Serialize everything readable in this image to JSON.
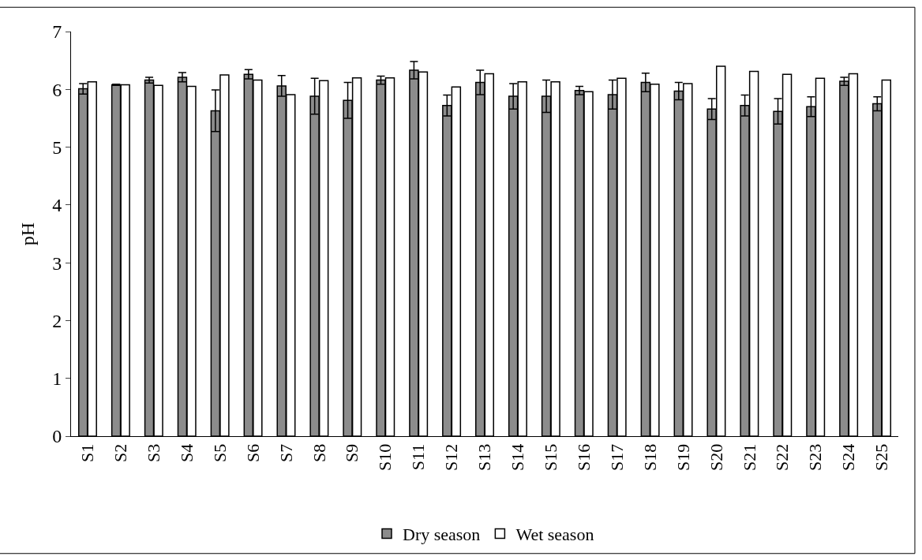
{
  "chart_data": {
    "type": "bar",
    "ylabel": "pH",
    "categories": [
      "S1",
      "S2",
      "S3",
      "S4",
      "S5",
      "S6",
      "S7",
      "S8",
      "S9",
      "S10",
      "S11",
      "S12",
      "S13",
      "S14",
      "S15",
      "S16",
      "S17",
      "S18",
      "S19",
      "S20",
      "S21",
      "S22",
      "S23",
      "S24",
      "S25"
    ],
    "series": [
      {
        "name": "Dry season",
        "color": "#8c8c8c",
        "values": [
          6.01,
          6.08,
          6.16,
          6.21,
          5.63,
          6.26,
          6.06,
          5.88,
          5.81,
          6.16,
          6.33,
          5.72,
          6.12,
          5.88,
          5.88,
          5.98,
          5.91,
          6.12,
          5.97,
          5.66,
          5.72,
          5.62,
          5.7,
          6.14,
          5.75
        ],
        "errors": [
          0.09,
          0.01,
          0.05,
          0.08,
          0.36,
          0.08,
          0.18,
          0.31,
          0.31,
          0.07,
          0.15,
          0.18,
          0.21,
          0.22,
          0.28,
          0.07,
          0.25,
          0.16,
          0.15,
          0.18,
          0.18,
          0.22,
          0.17,
          0.07,
          0.12
        ]
      },
      {
        "name": "Wet season",
        "color": "#ffffff",
        "values": [
          6.13,
          6.08,
          6.07,
          6.05,
          6.25,
          6.16,
          5.91,
          6.15,
          6.2,
          6.2,
          6.3,
          6.04,
          6.27,
          6.13,
          6.13,
          5.96,
          6.19,
          6.09,
          6.1,
          6.4,
          6.31,
          6.26,
          6.19,
          6.27,
          6.16
        ]
      }
    ],
    "ylim": [
      0,
      7
    ],
    "yticks": [
      0,
      1,
      2,
      3,
      4,
      5,
      6,
      7
    ],
    "grid": false,
    "legend": "bottom"
  }
}
